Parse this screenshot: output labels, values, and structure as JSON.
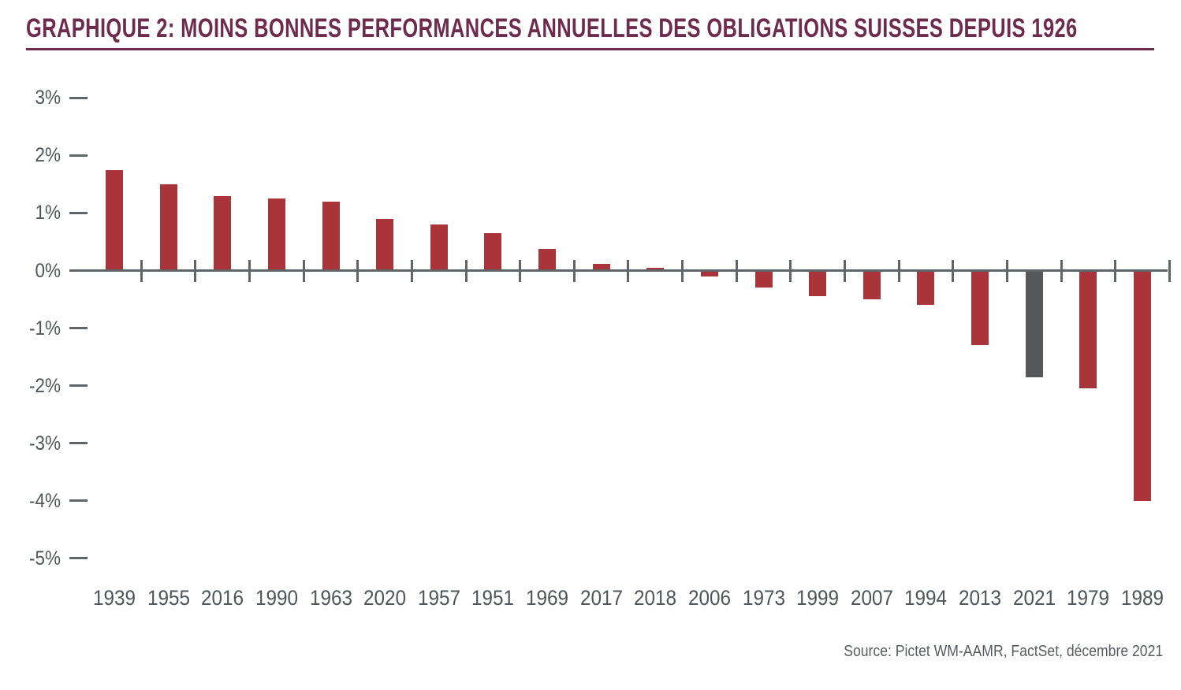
{
  "chart_data": {
    "type": "bar",
    "title": "GRAPHIQUE 2: MOINS BONNES PERFORMANCES ANNUELLES DES OBLIGATIONS SUISSES DEPUIS 1926",
    "source": "Source: Pictet WM-AAMR, FactSet, décembre 2021",
    "categories": [
      "1939",
      "1955",
      "2016",
      "1990",
      "1963",
      "2020",
      "1957",
      "1951",
      "1969",
      "2017",
      "2018",
      "2006",
      "1973",
      "1999",
      "2007",
      "1994",
      "2013",
      "2021",
      "1979",
      "1989"
    ],
    "values": [
      1.75,
      1.5,
      1.3,
      1.25,
      1.2,
      0.9,
      0.8,
      0.65,
      0.38,
      0.12,
      0.05,
      -0.1,
      -0.3,
      -0.45,
      -0.5,
      -0.6,
      -1.3,
      -1.85,
      -2.05,
      -4.0
    ],
    "unit": "%",
    "highlight_category": "2021",
    "ytick_values": [
      3,
      2,
      1,
      0,
      -1,
      -2,
      -3,
      -4,
      -5
    ],
    "ytick_labels": [
      "3%",
      "2%",
      "1%",
      "0%",
      "-1%",
      "-2%",
      "-3%",
      "-4%",
      "-5%"
    ],
    "ylim": [
      -5.5,
      3.5
    ],
    "xlabel": "",
    "ylabel": "",
    "grid": false,
    "legend": "none",
    "colors": {
      "bar": "#A93439",
      "highlight_bar": "#54585B",
      "axis": "#5F6569",
      "tick_label": "#4E555B",
      "title": "#6E2B4E",
      "source_text": "#565C61"
    }
  }
}
